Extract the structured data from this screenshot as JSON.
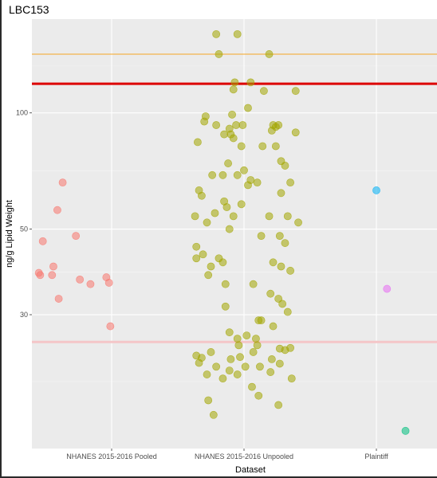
{
  "chart_data": {
    "type": "scatter",
    "title": "LBC153",
    "xlabel": "Dataset",
    "ylabel": "ng/g Lipid Weight",
    "y_scale": "log",
    "ylim": [
      13.5,
      175
    ],
    "y_ticks": [
      30,
      50,
      100
    ],
    "grid": true,
    "categories": [
      "NHANES 2015-2016 Pooled",
      "NHANES 2015-2016 Unpooled",
      "Plaintiff"
    ],
    "reference_lines": [
      {
        "y": 142,
        "color": "#F5A623",
        "width": 1
      },
      {
        "y": 119,
        "color": "#DD0000",
        "width": 3
      },
      {
        "y": 25.5,
        "color": "#F4C6C8",
        "width": 3
      }
    ],
    "series": [
      {
        "category": "NHANES 2015-2016 Pooled",
        "color": "#F8766D",
        "points": [
          {
            "x": 0.63,
            "y": 66
          },
          {
            "x": 0.59,
            "y": 56
          },
          {
            "x": 0.48,
            "y": 46.5
          },
          {
            "x": 0.73,
            "y": 48
          },
          {
            "x": 0.56,
            "y": 40
          },
          {
            "x": 0.45,
            "y": 38.5
          },
          {
            "x": 0.46,
            "y": 38
          },
          {
            "x": 0.55,
            "y": 38
          },
          {
            "x": 0.76,
            "y": 37
          },
          {
            "x": 0.96,
            "y": 37.5
          },
          {
            "x": 0.84,
            "y": 36
          },
          {
            "x": 0.98,
            "y": 36.3
          },
          {
            "x": 0.6,
            "y": 33
          },
          {
            "x": 0.99,
            "y": 28
          }
        ]
      },
      {
        "category": "NHANES 2015-2016 Unpooled",
        "color": "#A3A500",
        "points": [
          {
            "x": 1.79,
            "y": 160
          },
          {
            "x": 1.95,
            "y": 160
          },
          {
            "x": 1.81,
            "y": 142
          },
          {
            "x": 2.19,
            "y": 142
          },
          {
            "x": 1.93,
            "y": 120
          },
          {
            "x": 2.05,
            "y": 120
          },
          {
            "x": 1.92,
            "y": 115
          },
          {
            "x": 2.15,
            "y": 114
          },
          {
            "x": 2.39,
            "y": 114
          },
          {
            "x": 1.71,
            "y": 98
          },
          {
            "x": 1.91,
            "y": 99
          },
          {
            "x": 2.03,
            "y": 103
          },
          {
            "x": 1.7,
            "y": 95
          },
          {
            "x": 1.94,
            "y": 93
          },
          {
            "x": 2.22,
            "y": 93
          },
          {
            "x": 2.26,
            "y": 93
          },
          {
            "x": 1.79,
            "y": 93
          },
          {
            "x": 1.89,
            "y": 91
          },
          {
            "x": 1.99,
            "y": 93
          },
          {
            "x": 2.24,
            "y": 92
          },
          {
            "x": 2.39,
            "y": 89
          },
          {
            "x": 1.85,
            "y": 88
          },
          {
            "x": 1.9,
            "y": 88
          },
          {
            "x": 2.21,
            "y": 90
          },
          {
            "x": 1.92,
            "y": 86
          },
          {
            "x": 1.65,
            "y": 84
          },
          {
            "x": 1.98,
            "y": 82
          },
          {
            "x": 2.14,
            "y": 82
          },
          {
            "x": 2.24,
            "y": 82
          },
          {
            "x": 2.28,
            "y": 75
          },
          {
            "x": 1.88,
            "y": 74
          },
          {
            "x": 2.31,
            "y": 73
          },
          {
            "x": 2.0,
            "y": 71
          },
          {
            "x": 1.76,
            "y": 69
          },
          {
            "x": 1.84,
            "y": 69
          },
          {
            "x": 1.95,
            "y": 69
          },
          {
            "x": 2.05,
            "y": 67
          },
          {
            "x": 2.1,
            "y": 66
          },
          {
            "x": 2.35,
            "y": 66
          },
          {
            "x": 2.03,
            "y": 65
          },
          {
            "x": 1.66,
            "y": 63
          },
          {
            "x": 2.28,
            "y": 62
          },
          {
            "x": 1.68,
            "y": 61
          },
          {
            "x": 1.85,
            "y": 59
          },
          {
            "x": 1.87,
            "y": 57
          },
          {
            "x": 1.98,
            "y": 58
          },
          {
            "x": 1.78,
            "y": 55
          },
          {
            "x": 1.92,
            "y": 54
          },
          {
            "x": 2.33,
            "y": 54
          },
          {
            "x": 1.63,
            "y": 54
          },
          {
            "x": 1.72,
            "y": 52
          },
          {
            "x": 2.19,
            "y": 54
          },
          {
            "x": 2.41,
            "y": 52
          },
          {
            "x": 1.89,
            "y": 50
          },
          {
            "x": 2.13,
            "y": 48
          },
          {
            "x": 2.27,
            "y": 48
          },
          {
            "x": 2.31,
            "y": 46
          },
          {
            "x": 1.64,
            "y": 45
          },
          {
            "x": 1.69,
            "y": 43
          },
          {
            "x": 1.64,
            "y": 42
          },
          {
            "x": 1.81,
            "y": 42
          },
          {
            "x": 1.84,
            "y": 41
          },
          {
            "x": 2.22,
            "y": 41
          },
          {
            "x": 2.28,
            "y": 40
          },
          {
            "x": 1.75,
            "y": 40
          },
          {
            "x": 1.73,
            "y": 38
          },
          {
            "x": 2.35,
            "y": 39
          },
          {
            "x": 2.07,
            "y": 36
          },
          {
            "x": 1.86,
            "y": 36
          },
          {
            "x": 2.2,
            "y": 34
          },
          {
            "x": 2.26,
            "y": 33
          },
          {
            "x": 2.29,
            "y": 32
          },
          {
            "x": 1.86,
            "y": 31.5
          },
          {
            "x": 2.33,
            "y": 30.5
          },
          {
            "x": 2.11,
            "y": 29
          },
          {
            "x": 2.13,
            "y": 29
          },
          {
            "x": 2.22,
            "y": 28
          },
          {
            "x": 1.89,
            "y": 27
          },
          {
            "x": 2.02,
            "y": 26.5
          },
          {
            "x": 1.95,
            "y": 26
          },
          {
            "x": 2.09,
            "y": 26
          },
          {
            "x": 2.1,
            "y": 25
          },
          {
            "x": 1.96,
            "y": 25
          },
          {
            "x": 2.27,
            "y": 24.5
          },
          {
            "x": 2.35,
            "y": 24.6
          },
          {
            "x": 2.31,
            "y": 24.3
          },
          {
            "x": 2.07,
            "y": 24
          },
          {
            "x": 1.75,
            "y": 24
          },
          {
            "x": 1.64,
            "y": 23.5
          },
          {
            "x": 1.68,
            "y": 23.2
          },
          {
            "x": 2.21,
            "y": 23
          },
          {
            "x": 1.9,
            "y": 23
          },
          {
            "x": 1.97,
            "y": 23.3
          },
          {
            "x": 1.66,
            "y": 22.5
          },
          {
            "x": 2.27,
            "y": 22.4
          },
          {
            "x": 2.01,
            "y": 22
          },
          {
            "x": 1.79,
            "y": 22
          },
          {
            "x": 2.12,
            "y": 22
          },
          {
            "x": 1.89,
            "y": 21.5
          },
          {
            "x": 2.2,
            "y": 21.3
          },
          {
            "x": 1.72,
            "y": 21
          },
          {
            "x": 1.95,
            "y": 21
          },
          {
            "x": 1.84,
            "y": 20.5
          },
          {
            "x": 2.36,
            "y": 20.5
          },
          {
            "x": 2.06,
            "y": 19.5
          },
          {
            "x": 2.11,
            "y": 18.5
          },
          {
            "x": 1.73,
            "y": 18
          },
          {
            "x": 2.26,
            "y": 17.5
          },
          {
            "x": 1.77,
            "y": 16.5
          }
        ]
      },
      {
        "category": "Plaintiff",
        "points": [
          {
            "x": 3.0,
            "y": 63,
            "color": "#00B0F6"
          },
          {
            "x": 3.08,
            "y": 35,
            "color": "#E76BF3"
          },
          {
            "x": 3.22,
            "y": 15,
            "color": "#00BF7D"
          }
        ]
      }
    ]
  }
}
